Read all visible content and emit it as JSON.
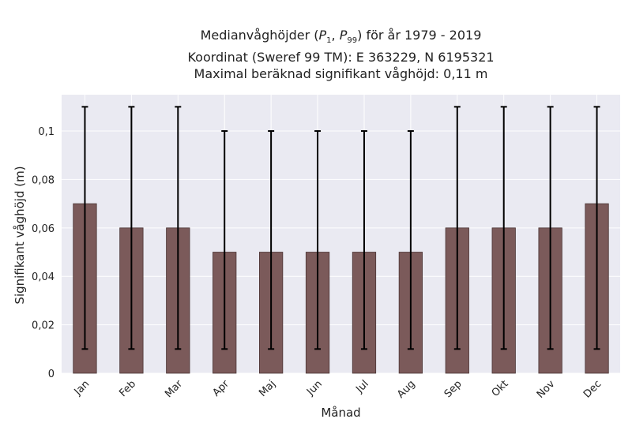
{
  "chart_data": {
    "type": "bar",
    "title": "Medianvåghöjder (P1, P99) för år 1979 - 2019",
    "title_parts": {
      "prefix": "Medianvåghöjder (",
      "p_low": "P",
      "p_low_sub": "1",
      "separator": ", ",
      "p_high": "P",
      "p_high_sub": "99",
      "suffix": ") för år 1979 - 2019"
    },
    "subtitle": [
      "Koordinat (Sweref 99 TM): E 363229, N 6195321",
      "Maximal beräknad signifikant våghöjd: 0,11 m"
    ],
    "xlabel": "Månad",
    "ylabel": "Signifikant våghöjd (m)",
    "categories": [
      "Jan",
      "Feb",
      "Mar",
      "Apr",
      "Maj",
      "Jun",
      "Jul",
      "Aug",
      "Sep",
      "Okt",
      "Nov",
      "Dec"
    ],
    "values": [
      0.07,
      0.06,
      0.06,
      0.05,
      0.05,
      0.05,
      0.05,
      0.05,
      0.06,
      0.06,
      0.06,
      0.07
    ],
    "error_low": [
      0.01,
      0.01,
      0.01,
      0.01,
      0.01,
      0.01,
      0.01,
      0.01,
      0.01,
      0.01,
      0.01,
      0.01
    ],
    "error_high": [
      0.11,
      0.11,
      0.11,
      0.1,
      0.1,
      0.1,
      0.1,
      0.1,
      0.11,
      0.11,
      0.11,
      0.11
    ],
    "ylim": [
      0,
      0.115
    ],
    "yticks": [
      0,
      0.02,
      0.04,
      0.06,
      0.08,
      0.1
    ],
    "ytick_labels": [
      "0",
      "0,02",
      "0,04",
      "0,06",
      "0,08",
      "0,1"
    ],
    "grid": true,
    "colors": {
      "bar": "#7b5a5a",
      "bar_edge": "#4a3434",
      "plot_bg": "#eaeaf2",
      "grid": "#ffffff",
      "errorbar": "#000000"
    }
  }
}
